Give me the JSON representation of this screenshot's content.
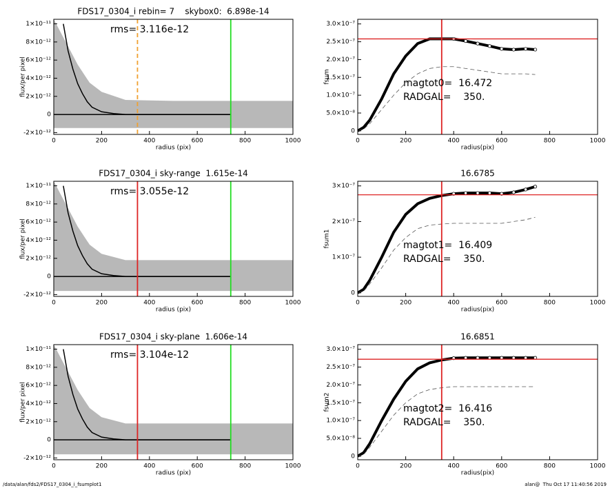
{
  "chart_data": [
    {
      "type": "scatter",
      "title": "FDS17_0304_i rebin= 7    skybox0:  6.898e-14",
      "annotation": "rms= 3.116e-12",
      "xlabel": "radius (pix)",
      "ylabel": "flux/per pixel",
      "xlim": [
        0,
        1000
      ],
      "xticks": [
        0,
        200,
        400,
        600,
        800,
        1000
      ],
      "ylim": [
        -2.2e-12,
        1.05e-11
      ],
      "yticks": [
        {
          "value": -2e-12,
          "label": "-2×10⁻¹²"
        },
        0,
        {
          "value": 2e-12,
          "label": "2×10⁻¹²"
        },
        {
          "value": 4e-12,
          "label": "4×10⁻¹²"
        },
        {
          "value": 6e-12,
          "label": "6×10⁻¹²"
        },
        {
          "value": 8e-12,
          "label": "8×10⁻¹²"
        },
        {
          "value": 1e-11,
          "label": "1×10⁻¹¹"
        }
      ],
      "cloud": {
        "color": "#a0a0a0",
        "x": [
          0,
          50,
          100,
          150,
          200,
          300,
          500,
          740,
          1000
        ],
        "upper": [
          1.05e-11,
          8e-12,
          5.5e-12,
          3.5e-12,
          2.5e-12,
          1.6e-12,
          1.5e-12,
          1.5e-12,
          1.5e-12
        ],
        "lower": [
          -1.5e-12,
          -1.5e-12,
          -1.5e-12,
          -1.5e-12,
          -1.5e-12,
          -1.5e-12,
          -1.5e-12,
          -1.5e-12,
          -1.5e-12
        ]
      },
      "series": [
        {
          "color": "#000000",
          "x": [
            0,
            740
          ],
          "values": [
            0,
            0
          ]
        },
        {
          "color": "#000000",
          "x": [
            40,
            60,
            80,
            100,
            120,
            140,
            160,
            200,
            250,
            300,
            400,
            500,
            600,
            740
          ],
          "values": [
            1e-11,
            7e-12,
            5e-12,
            3.4e-12,
            2.3e-12,
            1.4e-12,
            8e-13,
            3e-13,
            1e-13,
            0,
            0,
            0,
            0,
            0
          ]
        }
      ],
      "vlines": [
        {
          "value": 350,
          "color": "#f0a030",
          "dashed": true
        },
        {
          "value": 740,
          "color": "#22dd22",
          "dashed": false
        }
      ]
    },
    {
      "type": "line",
      "ylabel": "fsum",
      "xlabel": "radius(pix)",
      "annotations": [
        "magtot0=  16.472",
        "RADGAL=    350."
      ],
      "xlim": [
        0,
        1000
      ],
      "xticks": [
        0,
        200,
        400,
        600,
        800,
        1000
      ],
      "ylim": [
        -1e-08,
        3.13e-07
      ],
      "yticks": [
        0,
        {
          "value": 5e-08,
          "label": "5.0×10⁻⁸"
        },
        {
          "value": 1e-07,
          "label": "1.0×10⁻⁷"
        },
        {
          "value": 1.5e-07,
          "label": "1.5×10⁻⁷"
        },
        {
          "value": 2e-07,
          "label": "2.0×10⁻⁷"
        },
        {
          "value": 2.5e-07,
          "label": "2.5×10⁻⁷"
        },
        {
          "value": 3e-07,
          "label": "3.0×10⁻⁷"
        }
      ],
      "x": [
        0,
        25,
        50,
        100,
        150,
        200,
        250,
        300,
        350,
        400,
        450,
        500,
        550,
        600,
        650,
        700,
        740
      ],
      "series": [
        {
          "color": "#000000",
          "dashed": false,
          "values": [
            0,
            1e-08,
            3e-08,
            9e-08,
            1.6e-07,
            2.1e-07,
            2.45e-07,
            2.58e-07,
            2.58e-07,
            2.58e-07,
            2.52e-07,
            2.45e-07,
            2.38e-07,
            2.3e-07,
            2.28e-07,
            2.3e-07,
            2.28e-07
          ]
        },
        {
          "color": "#555555",
          "dashed": true,
          "values": [
            0,
            5e-09,
            2e-08,
            6e-08,
            1e-07,
            1.35e-07,
            1.6e-07,
            1.75e-07,
            1.8e-07,
            1.8e-07,
            1.75e-07,
            1.7e-07,
            1.65e-07,
            1.6e-07,
            1.6e-07,
            1.6e-07,
            1.58e-07
          ]
        }
      ],
      "hlines": [
        {
          "value": 2.58e-07,
          "color": "#dd2222"
        }
      ],
      "vlines": [
        {
          "value": 350,
          "color": "#dd2222",
          "dashed": false
        }
      ]
    },
    {
      "type": "scatter",
      "title": "FDS17_0304_i sky-range  1.615e-14",
      "annotation": "rms= 3.055e-12",
      "xlabel": "radius (pix)",
      "ylabel": "flux/per pixel",
      "xlim": [
        0,
        1000
      ],
      "xticks": [
        0,
        200,
        400,
        600,
        800,
        1000
      ],
      "ylim": [
        -2.2e-12,
        1.05e-11
      ],
      "yticks": [
        {
          "value": -2e-12,
          "label": "-2×10⁻¹²"
        },
        0,
        {
          "value": 2e-12,
          "label": "2×10⁻¹²"
        },
        {
          "value": 4e-12,
          "label": "4×10⁻¹²"
        },
        {
          "value": 6e-12,
          "label": "6×10⁻¹²"
        },
        {
          "value": 8e-12,
          "label": "8×10⁻¹²"
        },
        {
          "value": 1e-11,
          "label": "1×10⁻¹¹"
        }
      ],
      "cloud": {
        "color": "#a0a0a0",
        "x": [
          0,
          50,
          100,
          150,
          200,
          300,
          500,
          740,
          1000
        ],
        "upper": [
          1.05e-11,
          8e-12,
          5.5e-12,
          3.5e-12,
          2.5e-12,
          1.8e-12,
          1.8e-12,
          1.8e-12,
          1.8e-12
        ],
        "lower": [
          -1.6e-12,
          -1.6e-12,
          -1.6e-12,
          -1.6e-12,
          -1.6e-12,
          -1.6e-12,
          -1.6e-12,
          -1.6e-12,
          -1.6e-12
        ]
      },
      "series": [
        {
          "color": "#000000",
          "x": [
            0,
            740
          ],
          "values": [
            0,
            0
          ]
        },
        {
          "color": "#000000",
          "x": [
            40,
            60,
            80,
            100,
            120,
            140,
            160,
            200,
            250,
            300,
            400,
            500,
            600,
            740
          ],
          "values": [
            1e-11,
            7e-12,
            5e-12,
            3.4e-12,
            2.3e-12,
            1.4e-12,
            8e-13,
            3e-13,
            1e-13,
            0,
            0,
            0,
            0,
            0
          ]
        }
      ],
      "vlines": [
        {
          "value": 350,
          "color": "#dd2222",
          "dashed": false
        },
        {
          "value": 740,
          "color": "#22dd22",
          "dashed": false
        }
      ]
    },
    {
      "type": "line",
      "title": "16.6785",
      "ylabel": "fsum1",
      "xlabel": "radius(pix)",
      "annotations": [
        "magtot1=  16.409",
        "RADGAL=    350."
      ],
      "xlim": [
        0,
        1000
      ],
      "xticks": [
        0,
        200,
        400,
        600,
        800,
        1000
      ],
      "ylim": [
        -1e-08,
        3.13e-07
      ],
      "yticks": [
        0,
        {
          "value": 1e-07,
          "label": "1×10⁻⁷"
        },
        {
          "value": 2e-07,
          "label": "2×10⁻⁷"
        },
        {
          "value": 3e-07,
          "label": "3×10⁻⁷"
        }
      ],
      "x": [
        0,
        25,
        50,
        100,
        150,
        200,
        250,
        300,
        350,
        400,
        450,
        500,
        550,
        600,
        650,
        700,
        740
      ],
      "series": [
        {
          "color": "#000000",
          "dashed": false,
          "values": [
            0,
            1e-08,
            3.5e-08,
            1e-07,
            1.7e-07,
            2.2e-07,
            2.5e-07,
            2.65e-07,
            2.73e-07,
            2.78e-07,
            2.8e-07,
            2.8e-07,
            2.8e-07,
            2.78e-07,
            2.82e-07,
            2.9e-07,
            2.98e-07
          ]
        },
        {
          "color": "#555555",
          "dashed": true,
          "values": [
            0,
            5e-09,
            2.5e-08,
            7e-08,
            1.2e-07,
            1.55e-07,
            1.8e-07,
            1.9e-07,
            1.93e-07,
            1.95e-07,
            1.95e-07,
            1.95e-07,
            1.95e-07,
            1.95e-07,
            2e-07,
            2.05e-07,
            2.12e-07
          ]
        }
      ],
      "hlines": [
        {
          "value": 2.75e-07,
          "color": "#dd2222"
        }
      ],
      "vlines": [
        {
          "value": 350,
          "color": "#dd2222",
          "dashed": false
        }
      ]
    },
    {
      "type": "scatter",
      "title": "FDS17_0304_i sky-plane  1.606e-14",
      "annotation": "rms= 3.104e-12",
      "xlabel": "radius (pix)",
      "ylabel": "flux/per pixel",
      "xlim": [
        0,
        1000
      ],
      "xticks": [
        0,
        200,
        400,
        600,
        800,
        1000
      ],
      "ylim": [
        -2.2e-12,
        1.05e-11
      ],
      "yticks": [
        {
          "value": -2e-12,
          "label": "-2×10⁻¹²"
        },
        0,
        {
          "value": 2e-12,
          "label": "2×10⁻¹²"
        },
        {
          "value": 4e-12,
          "label": "4×10⁻¹²"
        },
        {
          "value": 6e-12,
          "label": "6×10⁻¹²"
        },
        {
          "value": 8e-12,
          "label": "8×10⁻¹²"
        },
        {
          "value": 1e-11,
          "label": "1×10⁻¹¹"
        }
      ],
      "cloud": {
        "color": "#a0a0a0",
        "x": [
          0,
          50,
          100,
          150,
          200,
          300,
          500,
          740,
          1000
        ],
        "upper": [
          1.05e-11,
          8e-12,
          5.5e-12,
          3.5e-12,
          2.5e-12,
          1.8e-12,
          1.8e-12,
          1.8e-12,
          1.8e-12
        ],
        "lower": [
          -1.6e-12,
          -1.6e-12,
          -1.6e-12,
          -1.6e-12,
          -1.6e-12,
          -1.6e-12,
          -1.6e-12,
          -1.6e-12,
          -1.6e-12
        ]
      },
      "series": [
        {
          "color": "#000000",
          "x": [
            0,
            740
          ],
          "values": [
            0,
            0
          ]
        },
        {
          "color": "#000000",
          "x": [
            40,
            60,
            80,
            100,
            120,
            140,
            160,
            200,
            250,
            300,
            400,
            500,
            600,
            740
          ],
          "values": [
            1e-11,
            7e-12,
            5e-12,
            3.4e-12,
            2.3e-12,
            1.4e-12,
            8e-13,
            3e-13,
            1e-13,
            0,
            0,
            0,
            0,
            0
          ]
        }
      ],
      "vlines": [
        {
          "value": 350,
          "color": "#dd2222",
          "dashed": false
        },
        {
          "value": 740,
          "color": "#22dd22",
          "dashed": false
        }
      ]
    },
    {
      "type": "line",
      "title": "16.6851",
      "ylabel": "fsum2",
      "xlabel": "radius(pix)",
      "annotations": [
        "magtot2=  16.416",
        "RADGAL=    350."
      ],
      "xlim": [
        0,
        1000
      ],
      "xticks": [
        0,
        200,
        400,
        600,
        800,
        1000
      ],
      "ylim": [
        -1e-08,
        3.13e-07
      ],
      "yticks": [
        0,
        {
          "value": 5e-08,
          "label": "5.0×10⁻⁸"
        },
        {
          "value": 1e-07,
          "label": "1.0×10⁻⁷"
        },
        {
          "value": 1.5e-07,
          "label": "1.5×10⁻⁷"
        },
        {
          "value": 2e-07,
          "label": "2.0×10⁻⁷"
        },
        {
          "value": 2.5e-07,
          "label": "2.5×10⁻⁷"
        },
        {
          "value": 3e-07,
          "label": "3.0×10⁻⁷"
        }
      ],
      "x": [
        0,
        25,
        50,
        100,
        150,
        200,
        250,
        300,
        350,
        400,
        450,
        500,
        550,
        600,
        650,
        700,
        740
      ],
      "series": [
        {
          "color": "#000000",
          "dashed": false,
          "values": [
            0,
            1e-08,
            3.5e-08,
            1e-07,
            1.6e-07,
            2.1e-07,
            2.45e-07,
            2.62e-07,
            2.7e-07,
            2.75e-07,
            2.76e-07,
            2.76e-07,
            2.76e-07,
            2.76e-07,
            2.76e-07,
            2.76e-07,
            2.76e-07
          ]
        },
        {
          "color": "#555555",
          "dashed": true,
          "values": [
            0,
            5e-09,
            2.5e-08,
            7e-08,
            1.15e-07,
            1.5e-07,
            1.75e-07,
            1.87e-07,
            1.92e-07,
            1.95e-07,
            1.95e-07,
            1.95e-07,
            1.95e-07,
            1.95e-07,
            1.95e-07,
            1.95e-07,
            1.95e-07
          ]
        }
      ],
      "hlines": [
        {
          "value": 2.72e-07,
          "color": "#dd2222"
        }
      ],
      "vlines": [
        {
          "value": 350,
          "color": "#dd2222",
          "dashed": false
        }
      ]
    }
  ],
  "footer": {
    "left": "/data/alan/fds2/FDS17_0304_i_fsumplot1",
    "right": "alan@  Thu Oct 17 11:40:56 2019"
  }
}
